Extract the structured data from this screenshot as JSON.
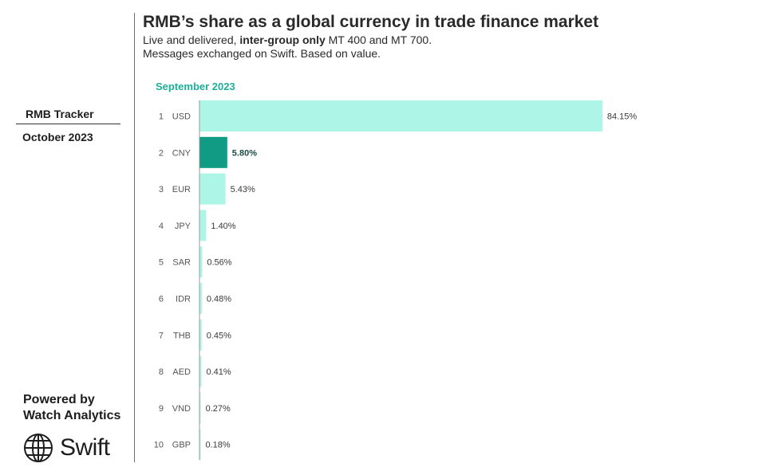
{
  "sidebar": {
    "tracker_label": "RMB Tracker",
    "date": "October 2023",
    "powered_line1": "Powered by",
    "powered_line2": "Watch Analytics",
    "logo_text": "Swift",
    "logo_icon": "globe-icon"
  },
  "header": {
    "title": "RMB’s share as a global currency in trade finance market",
    "subtitle_pre": "Live and delivered, ",
    "subtitle_bold": "inter-group only",
    "subtitle_post": " MT 400 and MT 700.",
    "subtitle_line2": "Messages exchanged on Swift. Based on value."
  },
  "colors": {
    "bar": "#adf6e7",
    "highlight": "#0f9b84",
    "period_label": "#1fae97",
    "axis": "#9a9a9a",
    "text": "#2a2a2a"
  },
  "chart_data": {
    "type": "bar",
    "orientation": "horizontal",
    "period": "September 2023",
    "highlight": "CNY",
    "ranks": [
      "1",
      "2",
      "3",
      "4",
      "5",
      "6",
      "7",
      "8",
      "9",
      "10"
    ],
    "categories": [
      "USD",
      "CNY",
      "EUR",
      "JPY",
      "SAR",
      "IDR",
      "THB",
      "AED",
      "VND",
      "GBP"
    ],
    "values": [
      84.15,
      5.8,
      5.43,
      1.4,
      0.56,
      0.48,
      0.45,
      0.41,
      0.27,
      0.18
    ],
    "value_labels": [
      "84.15%",
      "5.80%",
      "5.43%",
      "1.40%",
      "0.56%",
      "0.48%",
      "0.45%",
      "0.41%",
      "0.27%",
      "0.18%"
    ],
    "xlim": [
      0,
      100
    ],
    "grid": false,
    "legend": false
  }
}
